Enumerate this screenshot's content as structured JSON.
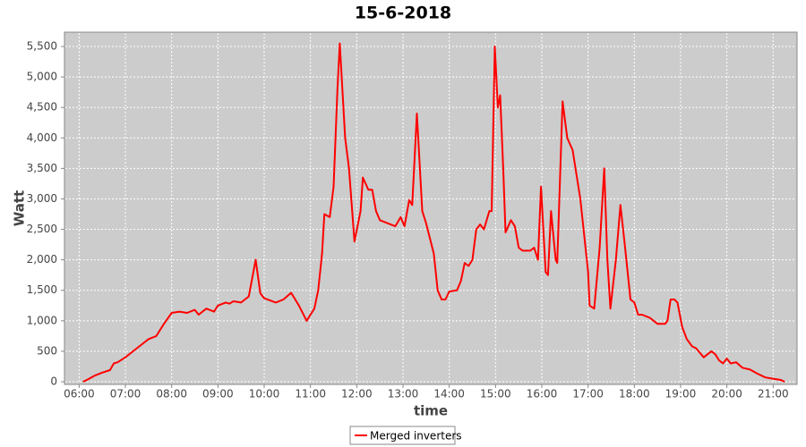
{
  "chart_data": {
    "type": "line",
    "title": "15-6-2018",
    "x_label": "time",
    "y_label": "Watt",
    "x": [
      "06:05",
      "06:10",
      "06:20",
      "06:30",
      "06:40",
      "06:45",
      "06:50",
      "07:00",
      "07:10",
      "07:20",
      "07:30",
      "07:40",
      "07:50",
      "08:00",
      "08:10",
      "08:20",
      "08:30",
      "08:35",
      "08:45",
      "08:55",
      "09:00",
      "09:10",
      "09:15",
      "09:20",
      "09:30",
      "09:40",
      "09:49",
      "09:55",
      "10:00",
      "10:15",
      "10:25",
      "10:35",
      "10:45",
      "10:55",
      "11:05",
      "11:10",
      "11:15",
      "11:18",
      "11:25",
      "11:30",
      "11:35",
      "11:38",
      "11:45",
      "11:50",
      "11:57",
      "12:05",
      "12:08",
      "12:15",
      "12:20",
      "12:25",
      "12:30",
      "12:40",
      "12:50",
      "12:57",
      "13:02",
      "13:08",
      "13:12",
      "13:18",
      "13:25",
      "13:30",
      "13:40",
      "13:45",
      "13:50",
      "13:55",
      "14:00",
      "14:10",
      "14:15",
      "14:20",
      "14:25",
      "14:30",
      "14:35",
      "14:40",
      "14:45",
      "14:52",
      "14:55",
      "14:59",
      "15:03",
      "15:06",
      "15:10",
      "15:13",
      "15:20",
      "15:25",
      "15:30",
      "15:35",
      "15:45",
      "15:50",
      "15:55",
      "15:59",
      "16:05",
      "16:08",
      "16:12",
      "16:18",
      "16:20",
      "16:27",
      "16:33",
      "16:40",
      "16:50",
      "17:00",
      "17:02",
      "17:08",
      "17:15",
      "17:21",
      "17:25",
      "17:29",
      "17:36",
      "17:42",
      "17:48",
      "17:55",
      "18:00",
      "18:05",
      "18:10",
      "18:20",
      "18:30",
      "18:40",
      "18:43",
      "18:47",
      "18:52",
      "18:56",
      "19:02",
      "19:08",
      "19:15",
      "19:20",
      "19:30",
      "19:35",
      "19:40",
      "19:45",
      "19:50",
      "19:55",
      "20:00",
      "20:05",
      "20:12",
      "20:20",
      "20:30",
      "20:40",
      "20:50",
      "21:00",
      "21:10",
      "21:15"
    ],
    "series": [
      {
        "name": "Merged inverters",
        "color": "#ff0000",
        "values": [
          0,
          30,
          100,
          150,
          190,
          300,
          320,
          400,
          500,
          600,
          700,
          750,
          950,
          1130,
          1150,
          1130,
          1180,
          1100,
          1200,
          1150,
          1250,
          1300,
          1280,
          1320,
          1300,
          1400,
          2000,
          1450,
          1370,
          1300,
          1350,
          1460,
          1250,
          1000,
          1200,
          1500,
          2100,
          2750,
          2700,
          3200,
          4800,
          5550,
          4000,
          3500,
          2300,
          2800,
          3350,
          3150,
          3150,
          2800,
          2650,
          2600,
          2550,
          2700,
          2550,
          2980,
          2900,
          4400,
          2800,
          2600,
          2100,
          1500,
          1350,
          1350,
          1480,
          1500,
          1650,
          1950,
          1900,
          2000,
          2500,
          2580,
          2500,
          2800,
          2800,
          5500,
          4500,
          4700,
          3500,
          2450,
          2650,
          2550,
          2200,
          2150,
          2150,
          2200,
          2000,
          3200,
          1800,
          1750,
          2800,
          2000,
          1950,
          4600,
          4000,
          3800,
          3000,
          1800,
          1250,
          1200,
          2200,
          3500,
          2000,
          1200,
          2000,
          2900,
          2200,
          1350,
          1300,
          1100,
          1100,
          1050,
          950,
          950,
          1000,
          1350,
          1350,
          1300,
          900,
          700,
          580,
          550,
          400,
          450,
          500,
          450,
          350,
          300,
          380,
          300,
          320,
          230,
          200,
          130,
          70,
          50,
          30,
          0
        ]
      }
    ],
    "xlim": [
      "05:41",
      "21:31"
    ],
    "xticks": [
      "06:00",
      "07:00",
      "08:00",
      "09:00",
      "10:00",
      "11:00",
      "12:00",
      "13:00",
      "14:00",
      "15:00",
      "16:00",
      "17:00",
      "18:00",
      "19:00",
      "20:00",
      "21:00"
    ],
    "ylim": [
      -44,
      5735
    ],
    "yticks": [
      0,
      500,
      {
        "value": 1000,
        "label": "1,000"
      },
      {
        "value": 1500,
        "label": "1,500"
      },
      {
        "value": 2000,
        "label": "2,000"
      },
      {
        "value": 2500,
        "label": "2,500"
      },
      {
        "value": 3000,
        "label": "3,000"
      },
      {
        "value": 3500,
        "label": "3,500"
      },
      {
        "value": 4000,
        "label": "4,000"
      },
      {
        "value": 4500,
        "label": "4,500"
      },
      {
        "value": 5000,
        "label": "5,000"
      },
      {
        "value": 5500,
        "label": "5,500"
      }
    ],
    "grid": true,
    "legend": "bottom"
  }
}
